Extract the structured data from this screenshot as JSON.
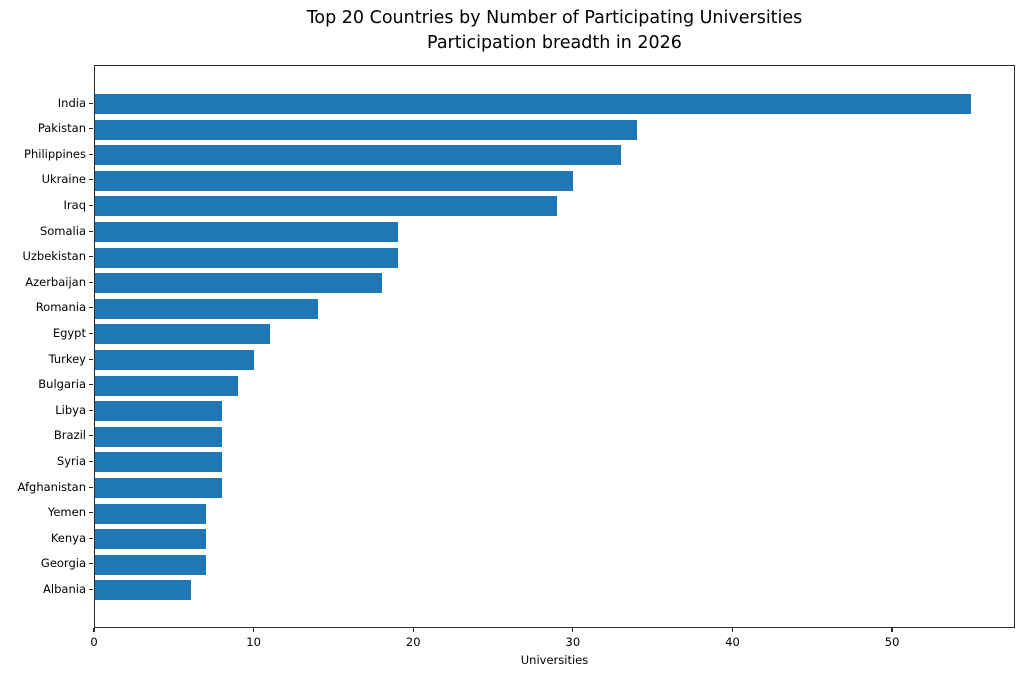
{
  "chart_data": {
    "type": "bar",
    "orientation": "horizontal",
    "title": "Top 20 Countries by Number of Participating Universities",
    "subtitle": "Participation breadth in 2026",
    "categories": [
      "India",
      "Pakistan",
      "Philippines",
      "Ukraine",
      "Iraq",
      "Somalia",
      "Uzbekistan",
      "Azerbaijan",
      "Romania",
      "Egypt",
      "Turkey",
      "Bulgaria",
      "Libya",
      "Brazil",
      "Syria",
      "Afghanistan",
      "Yemen",
      "Kenya",
      "Georgia",
      "Albania"
    ],
    "values": [
      55,
      34,
      33,
      30,
      29,
      19,
      19,
      18,
      14,
      11,
      10,
      9,
      8,
      8,
      8,
      8,
      7,
      7,
      7,
      6
    ],
    "xlabel": "Universities",
    "ylabel": "",
    "xlim": [
      0,
      57.7
    ],
    "xticks": [
      0,
      10,
      20,
      30,
      40,
      50
    ],
    "bar_color": "#1f77b4",
    "grid": false,
    "legend": null,
    "background_color": "#ffffff"
  }
}
